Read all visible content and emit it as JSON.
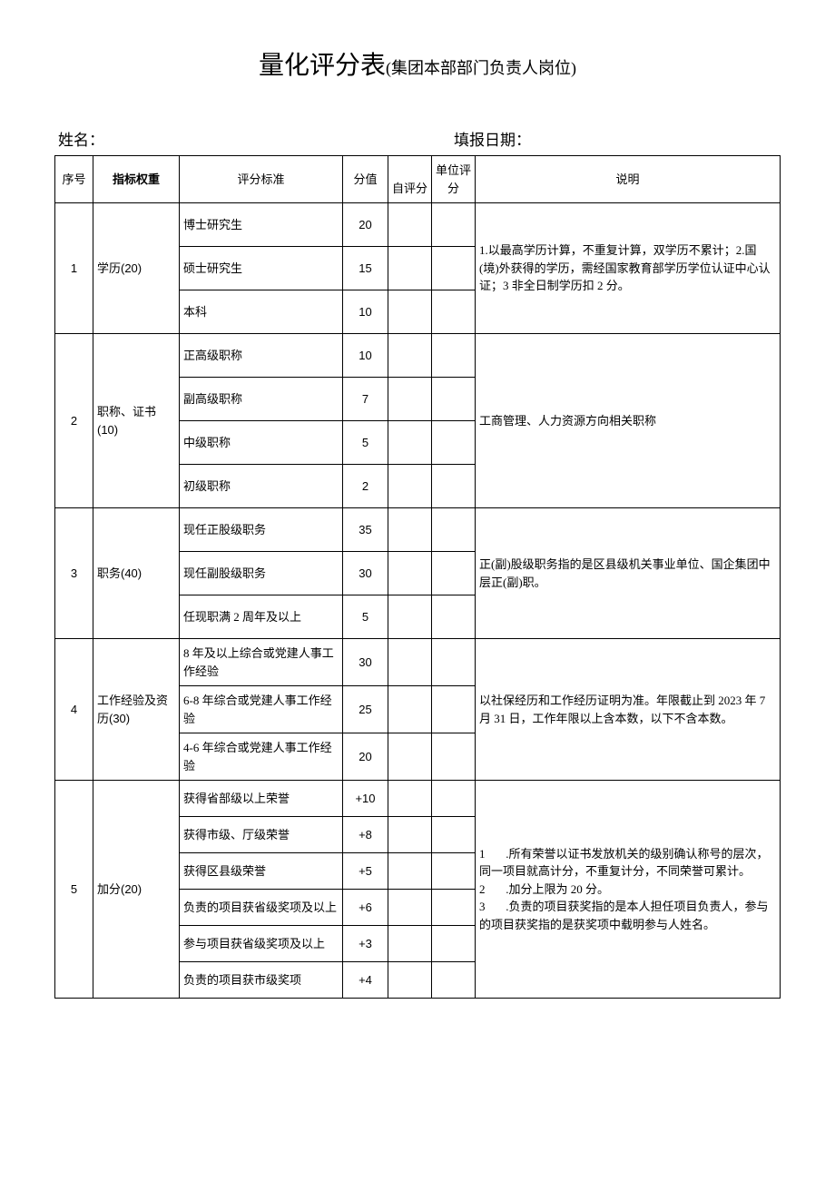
{
  "title": {
    "main": "量化评分表",
    "sub": "(集团本部部门负责人岗位)"
  },
  "meta": {
    "name_label": "姓名：",
    "name_value": "",
    "date_label": "填报日期：",
    "date_value": ""
  },
  "headers": {
    "seq": "序号",
    "weight": "指标权重",
    "criteria": "评分标准",
    "score": "分值",
    "self": "自评分",
    "unit": "单位评分",
    "desc": "说明"
  },
  "sections": [
    {
      "seq": "1",
      "weight": "学历(20)",
      "rows": [
        {
          "criteria": "博士研究生",
          "score": "20"
        },
        {
          "criteria": "硕士研究生",
          "score": "15"
        },
        {
          "criteria": "本科",
          "score": "10"
        }
      ],
      "desc": "1.以最高学历计算，不重复计算，双学历不累计；2.国(境)外获得的学历，需经国家教育部学历学位认证中心认证；3 非全日制学历扣 2 分。"
    },
    {
      "seq": "2",
      "weight": "职称、证书(10)",
      "rows": [
        {
          "criteria": "正高级职称",
          "score": "10"
        },
        {
          "criteria": "副高级职称",
          "score": "7"
        },
        {
          "criteria": "中级职称",
          "score": "5"
        },
        {
          "criteria": "初级职称",
          "score": "2"
        }
      ],
      "desc": "工商管理、人力资源方向相关职称"
    },
    {
      "seq": "3",
      "weight": "职务(40)",
      "rows": [
        {
          "criteria": "现任正股级职务",
          "score": "35"
        },
        {
          "criteria": "现任副股级职务",
          "score": "30"
        },
        {
          "criteria": "任现职满 2 周年及以上",
          "score": "5"
        }
      ],
      "desc": "正(副)股级职务指的是区县级机关事业单位、国企集团中层正(副)职。"
    },
    {
      "seq": "4",
      "weight": "工作经验及资历(30)",
      "rows": [
        {
          "criteria": "8 年及以上综合或党建人事工作经验",
          "score": "30"
        },
        {
          "criteria": "6-8 年综合或党建人事工作经验",
          "score": "25"
        },
        {
          "criteria": "4-6 年综合或党建人事工作经验",
          "score": "20"
        }
      ],
      "desc": "以社保经历和工作经历证明为准。年限截止到 2023 年 7 月 31 日，工作年限以上含本数，以下不含本数。"
    },
    {
      "seq": "5",
      "weight": "加分(20)",
      "rows": [
        {
          "criteria": "获得省部级以上荣誉",
          "score": "+10"
        },
        {
          "criteria": "获得市级、厅级荣誉",
          "score": "+8"
        },
        {
          "criteria": "获得区县级荣誉",
          "score": "+5"
        },
        {
          "criteria": "负责的项目获省级奖项及以上",
          "score": "+6"
        },
        {
          "criteria": "参与项目获省级奖项及以上",
          "score": "+3"
        },
        {
          "criteria": "负责的项目获市级奖项",
          "score": "+4"
        }
      ],
      "desc": "1       .所有荣誉以证书发放机关的级别确认称号的层次，同一项目就高计分，不重复计分，不同荣誉可累计。\n2       .加分上限为 20 分。\n3       .负责的项目获奖指的是本人担任项目负责人，参与的项目获奖指的是获奖项中载明参与人姓名。"
    }
  ],
  "style": {
    "text_color": "#000000",
    "background_color": "#ffffff",
    "border_color": "#000000",
    "title_fontsize": 28,
    "subtitle_fontsize": 18,
    "body_fontsize": 13,
    "meta_fontsize": 17,
    "font_family": "SimSun",
    "column_widths": {
      "seq": 42,
      "weight": 95,
      "criteria": 180,
      "score": 50,
      "self": 48,
      "unit": 48
    }
  }
}
